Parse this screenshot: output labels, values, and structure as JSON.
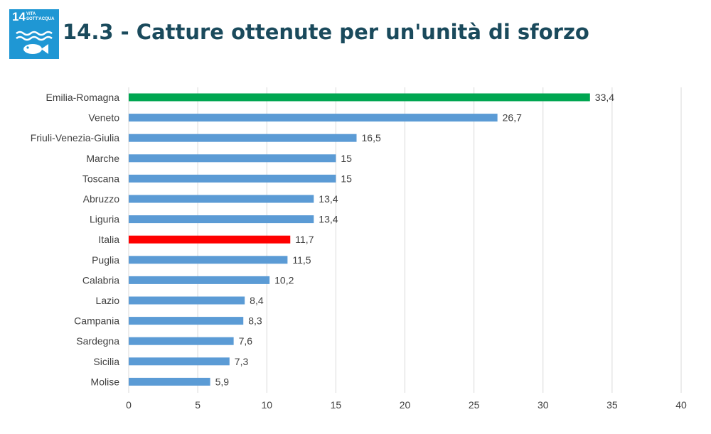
{
  "header": {
    "title": "14.3 - Catture ottenute per un'unità di sforzo",
    "badge": {
      "number": "14",
      "goal": "VITA SOTT'ACQUA",
      "color": "#1f97d4"
    }
  },
  "chart_data": {
    "type": "bar",
    "orientation": "horizontal",
    "categories": [
      "Emilia-Romagna",
      "Veneto",
      "Friuli-Venezia-Giulia",
      "Marche",
      "Toscana",
      "Abruzzo",
      "Liguria",
      "Italia",
      "Puglia",
      "Calabria",
      "Lazio",
      "Campania",
      "Sardegna",
      "Sicilia",
      "Molise"
    ],
    "values": [
      33.4,
      26.7,
      16.5,
      15,
      15,
      13.4,
      13.4,
      11.7,
      11.5,
      10.2,
      8.4,
      8.3,
      7.6,
      7.3,
      5.9
    ],
    "value_labels": [
      "33,4",
      "26,7",
      "16,5",
      "15",
      "15",
      "13,4",
      "13,4",
      "11,7",
      "11,5",
      "10,2",
      "8,4",
      "8,3",
      "7,6",
      "7,3",
      "5,9"
    ],
    "xlim": [
      0,
      40
    ],
    "xticks": [
      0,
      5,
      10,
      15,
      20,
      25,
      30,
      35,
      40
    ],
    "grid": "vertical",
    "colors": {
      "default": "#5b9bd5",
      "highlight_top": "#00a651",
      "highlight_italia": "#ff0000"
    },
    "bar_colors": [
      "#00a651",
      "#5b9bd5",
      "#5b9bd5",
      "#5b9bd5",
      "#5b9bd5",
      "#5b9bd5",
      "#5b9bd5",
      "#ff0000",
      "#5b9bd5",
      "#5b9bd5",
      "#5b9bd5",
      "#5b9bd5",
      "#5b9bd5",
      "#5b9bd5",
      "#5b9bd5"
    ]
  }
}
